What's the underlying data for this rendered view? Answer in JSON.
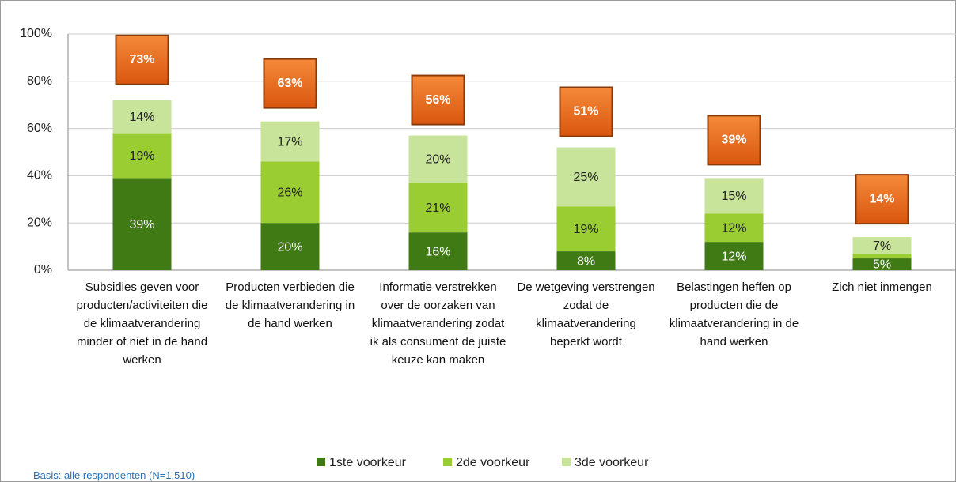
{
  "chart_data": {
    "type": "stacked_bar",
    "categories": [
      "Subsidies geven voor producten/activiteiten die de klimaatverandering minder of niet in de hand werken",
      "Producten verbieden die de klimaatverandering in de hand werken",
      "Informatie verstrekken over de oorzaken van klimaatverandering zodat ik als consument de juiste keuze kan maken",
      "De wetgeving verstrengen zodat de klimaatverandering beperkt wordt",
      "Belastingen heffen op producten die de klimaatverandering in de hand werken",
      "Zich niet inmengen"
    ],
    "series": [
      {
        "name": "1ste voorkeur",
        "color": "#3f7a14",
        "values": [
          39,
          20,
          16,
          8,
          12,
          5
        ],
        "value_labels": [
          "39%",
          "20%",
          "16%",
          "8%",
          "12%",
          "5%"
        ]
      },
      {
        "name": "2de voorkeur",
        "color": "#9acd32",
        "values": [
          19,
          26,
          21,
          19,
          12,
          2
        ],
        "value_labels": [
          "19%",
          "26%",
          "21%",
          "19%",
          "12%",
          null
        ]
      },
      {
        "name": "3de voorkeur",
        "color": "#c8e49a",
        "values": [
          14,
          17,
          20,
          25,
          15,
          7
        ],
        "value_labels": [
          "14%",
          "17%",
          "20%",
          "25%",
          "15%",
          "7%"
        ]
      }
    ],
    "totals": [
      73,
      63,
      56,
      51,
      39,
      14
    ],
    "total_labels": [
      "73%",
      "63%",
      "56%",
      "51%",
      "39%",
      "14%"
    ],
    "total_color": "#f07020",
    "ylim": [
      0,
      100
    ],
    "yticks": [
      {
        "value": 0,
        "label": "0%"
      },
      {
        "value": 20,
        "label": "20%"
      },
      {
        "value": 40,
        "label": "40%"
      },
      {
        "value": 60,
        "label": "60%"
      },
      {
        "value": 80,
        "label": "80%"
      },
      {
        "value": 100,
        "label": "100%"
      }
    ],
    "grid": true,
    "legend": "bottom",
    "footnote": "Basis: alle respondenten (N=1.510)"
  }
}
